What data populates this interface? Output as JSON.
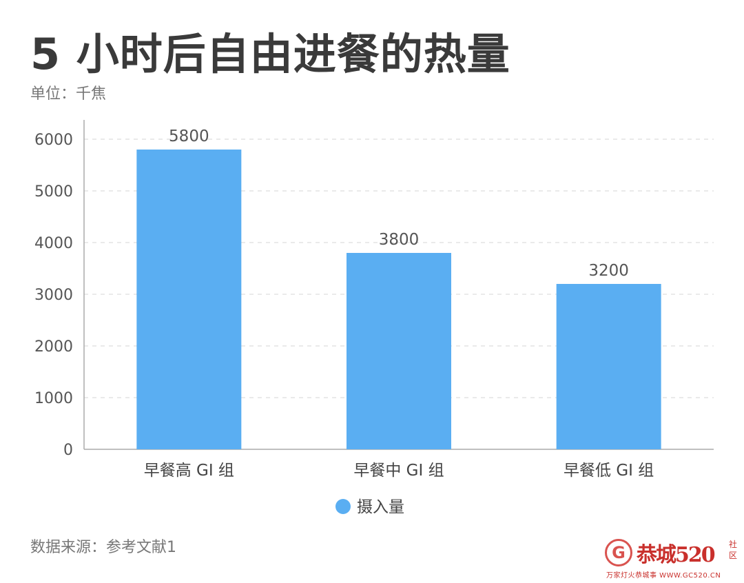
{
  "header": {
    "title": "5 小时后自由进餐的热量",
    "unit": "单位：千焦"
  },
  "footer": {
    "source": "数据来源：参考文献1"
  },
  "watermark": {
    "logo": "G",
    "brand": "恭城520",
    "side": "社区",
    "tagline": "万家灯火恭城事 WWW.GC520.CN"
  },
  "colors": {
    "bar": "#5aaef2",
    "grid": "#dddddd",
    "axis": "#aaaaaa",
    "text": "#555555"
  },
  "chart_data": {
    "type": "bar",
    "categories": [
      "早餐高 GI 组",
      "早餐中 GI 组",
      "早餐低 GI 组"
    ],
    "series": [
      {
        "name": "摄入量",
        "values": [
          5800,
          3800,
          3200
        ]
      }
    ],
    "title": "5 小时后自由进餐的热量",
    "subtitle": "单位：千焦",
    "ylim": [
      0,
      6000
    ],
    "yticks": [
      0,
      1000,
      2000,
      3000,
      4000,
      5000,
      6000
    ],
    "grid": true,
    "legend_position": "bottom"
  }
}
